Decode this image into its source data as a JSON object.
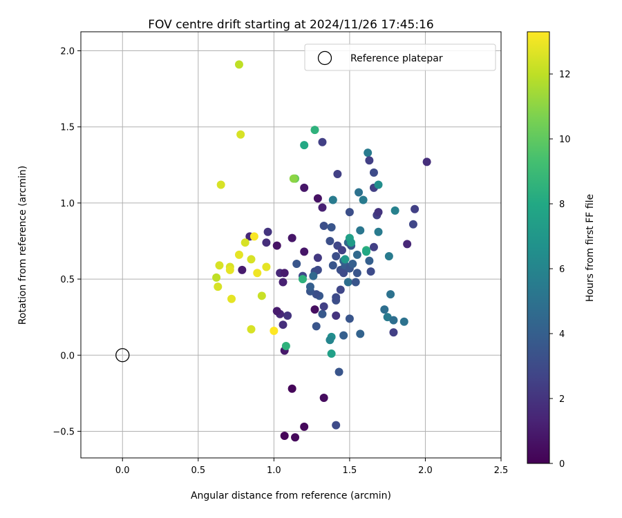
{
  "chart_data": {
    "type": "scatter",
    "title": "FOV centre drift starting at 2024/11/26 17:45:16",
    "xlabel": "Angular distance from reference (arcmin)",
    "ylabel": "Rotation from reference (arcmin)",
    "xlim": [
      -0.275,
      2.5
    ],
    "ylim": [
      -0.675,
      2.125
    ],
    "xticks": [
      0.0,
      0.5,
      1.0,
      1.5,
      2.0,
      2.5
    ],
    "xtick_labels": [
      "0.0",
      "0.5",
      "1.0",
      "1.5",
      "2.0",
      "2.5"
    ],
    "yticks": [
      -0.5,
      0.0,
      0.5,
      1.0,
      1.5,
      2.0
    ],
    "ytick_labels": [
      "−0.5",
      "0.0",
      "0.5",
      "1.0",
      "1.5",
      "2.0"
    ],
    "grid": true,
    "legend": {
      "position": "top-right",
      "entries": [
        "Reference platepar"
      ]
    },
    "reference_point": {
      "x": 0.0,
      "y": 0.0,
      "marker": "open-circle"
    },
    "colorbar": {
      "label": "Hours from first FF file",
      "colormap": "viridis",
      "range": [
        0,
        13.3
      ],
      "ticks": [
        0,
        2,
        4,
        6,
        8,
        10,
        12
      ],
      "tick_labels": [
        "0",
        "2",
        "4",
        "6",
        "8",
        "10",
        "12"
      ]
    },
    "series": [
      {
        "points": [
          {
            "x": 1.07,
            "y": -0.53,
            "c": 0.2
          },
          {
            "x": 1.14,
            "y": -0.54,
            "c": 0.3
          },
          {
            "x": 1.2,
            "y": -0.47,
            "c": 0.3
          },
          {
            "x": 1.12,
            "y": -0.22,
            "c": 0.2
          },
          {
            "x": 1.33,
            "y": -0.28,
            "c": 0.4
          },
          {
            "x": 1.07,
            "y": 0.03,
            "c": 0.9
          },
          {
            "x": 1.06,
            "y": 0.2,
            "c": 1.8
          },
          {
            "x": 1.09,
            "y": 0.26,
            "c": 2.0
          },
          {
            "x": 1.04,
            "y": 0.27,
            "c": 1.5
          },
          {
            "x": 1.02,
            "y": 0.29,
            "c": 1.0
          },
          {
            "x": 1.27,
            "y": 0.3,
            "c": 0.5
          },
          {
            "x": 1.06,
            "y": 0.48,
            "c": 1.2
          },
          {
            "x": 1.04,
            "y": 0.54,
            "c": 1.5
          },
          {
            "x": 1.07,
            "y": 0.54,
            "c": 1.0
          },
          {
            "x": 1.02,
            "y": 0.72,
            "c": 0.7
          },
          {
            "x": 1.12,
            "y": 0.77,
            "c": 0.8
          },
          {
            "x": 1.2,
            "y": 0.68,
            "c": 0.8
          },
          {
            "x": 0.84,
            "y": 0.78,
            "c": 1.5
          },
          {
            "x": 0.95,
            "y": 0.74,
            "c": 1.8
          },
          {
            "x": 0.96,
            "y": 0.81,
            "c": 2.0
          },
          {
            "x": 0.79,
            "y": 0.56,
            "c": 1.0
          },
          {
            "x": 1.2,
            "y": 1.1,
            "c": 0.8
          },
          {
            "x": 1.29,
            "y": 1.03,
            "c": 0.6
          },
          {
            "x": 1.32,
            "y": 0.97,
            "c": 1.2
          },
          {
            "x": 1.32,
            "y": 1.4,
            "c": 2.5
          },
          {
            "x": 1.42,
            "y": 1.19,
            "c": 2.5
          },
          {
            "x": 1.41,
            "y": 0.26,
            "c": 2.0
          },
          {
            "x": 1.41,
            "y": -0.46,
            "c": 3.0
          },
          {
            "x": 1.43,
            "y": -0.11,
            "c": 3.5
          },
          {
            "x": 1.28,
            "y": 0.19,
            "c": 3.5
          },
          {
            "x": 1.32,
            "y": 0.27,
            "c": 3.7
          },
          {
            "x": 1.33,
            "y": 0.32,
            "c": 2.5
          },
          {
            "x": 1.41,
            "y": 0.36,
            "c": 3.2
          },
          {
            "x": 1.41,
            "y": 0.38,
            "c": 3.0
          },
          {
            "x": 1.44,
            "y": 0.43,
            "c": 2.8
          },
          {
            "x": 1.3,
            "y": 0.39,
            "c": 3.7
          },
          {
            "x": 1.28,
            "y": 0.4,
            "c": 3.2
          },
          {
            "x": 1.24,
            "y": 0.42,
            "c": 3.5
          },
          {
            "x": 1.19,
            "y": 0.52,
            "c": 2.8
          },
          {
            "x": 1.15,
            "y": 0.6,
            "c": 3.5
          },
          {
            "x": 1.24,
            "y": 0.45,
            "c": 4.0
          },
          {
            "x": 1.27,
            "y": 0.55,
            "c": 3.2
          },
          {
            "x": 1.29,
            "y": 0.56,
            "c": 3.0
          },
          {
            "x": 1.26,
            "y": 0.52,
            "c": 4.5
          },
          {
            "x": 1.29,
            "y": 0.64,
            "c": 2.2
          },
          {
            "x": 1.33,
            "y": 0.85,
            "c": 3.2
          },
          {
            "x": 1.38,
            "y": 0.84,
            "c": 3.5
          },
          {
            "x": 1.37,
            "y": 0.75,
            "c": 3.2
          },
          {
            "x": 1.41,
            "y": 0.65,
            "c": 3.2
          },
          {
            "x": 1.42,
            "y": 0.72,
            "c": 2.8
          },
          {
            "x": 1.45,
            "y": 0.69,
            "c": 2.5
          },
          {
            "x": 1.39,
            "y": 0.59,
            "c": 3.5
          },
          {
            "x": 1.44,
            "y": 0.56,
            "c": 3.2
          },
          {
            "x": 1.46,
            "y": 0.54,
            "c": 3.0
          },
          {
            "x": 1.47,
            "y": 0.59,
            "c": 3.8
          },
          {
            "x": 1.49,
            "y": 0.48,
            "c": 4.8
          },
          {
            "x": 1.5,
            "y": 0.57,
            "c": 3.5
          },
          {
            "x": 1.52,
            "y": 0.6,
            "c": 4.0
          },
          {
            "x": 1.54,
            "y": 0.48,
            "c": 3.5
          },
          {
            "x": 1.55,
            "y": 0.54,
            "c": 3.5
          },
          {
            "x": 1.46,
            "y": 0.62,
            "c": 4.2
          },
          {
            "x": 1.49,
            "y": 0.74,
            "c": 4.5
          },
          {
            "x": 1.51,
            "y": 0.72,
            "c": 3.5
          },
          {
            "x": 1.5,
            "y": 0.94,
            "c": 3.2
          },
          {
            "x": 1.46,
            "y": 0.13,
            "c": 4.0
          },
          {
            "x": 1.57,
            "y": 0.14,
            "c": 4.2
          },
          {
            "x": 1.5,
            "y": 0.24,
            "c": 3.5
          },
          {
            "x": 1.55,
            "y": 0.66,
            "c": 4.5
          },
          {
            "x": 1.57,
            "y": 0.82,
            "c": 5.2
          },
          {
            "x": 1.56,
            "y": 1.07,
            "c": 5.0
          },
          {
            "x": 1.59,
            "y": 1.02,
            "c": 5.5
          },
          {
            "x": 1.62,
            "y": 1.33,
            "c": 5.5
          },
          {
            "x": 1.63,
            "y": 1.28,
            "c": 2.5
          },
          {
            "x": 1.66,
            "y": 1.2,
            "c": 3.0
          },
          {
            "x": 1.66,
            "y": 1.1,
            "c": 2.5
          },
          {
            "x": 1.68,
            "y": 0.92,
            "c": 2.5
          },
          {
            "x": 1.69,
            "y": 0.94,
            "c": 2.0
          },
          {
            "x": 1.66,
            "y": 0.71,
            "c": 2.5
          },
          {
            "x": 1.63,
            "y": 0.62,
            "c": 4.0
          },
          {
            "x": 1.64,
            "y": 0.55,
            "c": 3.0
          },
          {
            "x": 1.69,
            "y": 0.81,
            "c": 5.5
          },
          {
            "x": 1.69,
            "y": 1.12,
            "c": 6.5
          },
          {
            "x": 1.76,
            "y": 0.65,
            "c": 5.5
          },
          {
            "x": 1.75,
            "y": 0.25,
            "c": 5.5
          },
          {
            "x": 1.77,
            "y": 0.4,
            "c": 5.0
          },
          {
            "x": 1.73,
            "y": 0.3,
            "c": 4.8
          },
          {
            "x": 1.79,
            "y": 0.23,
            "c": 4.8
          },
          {
            "x": 1.8,
            "y": 0.95,
            "c": 5.8
          },
          {
            "x": 1.79,
            "y": 0.15,
            "c": 2.5
          },
          {
            "x": 1.86,
            "y": 0.22,
            "c": 5.0
          },
          {
            "x": 1.88,
            "y": 0.73,
            "c": 1.5
          },
          {
            "x": 1.92,
            "y": 0.86,
            "c": 2.8
          },
          {
            "x": 1.93,
            "y": 0.96,
            "c": 2.5
          },
          {
            "x": 2.01,
            "y": 1.27,
            "c": 1.8
          },
          {
            "x": 1.39,
            "y": 1.02,
            "c": 5.5
          },
          {
            "x": 1.38,
            "y": 0.12,
            "c": 6.5
          },
          {
            "x": 1.37,
            "y": 0.1,
            "c": 6.0
          },
          {
            "x": 1.38,
            "y": 0.01,
            "c": 7.5
          },
          {
            "x": 1.5,
            "y": 0.77,
            "c": 7.5
          },
          {
            "x": 1.51,
            "y": 0.74,
            "c": 7.2
          },
          {
            "x": 1.47,
            "y": 0.63,
            "c": 7.0
          },
          {
            "x": 1.61,
            "y": 0.69,
            "c": 8.5
          },
          {
            "x": 1.61,
            "y": 0.68,
            "c": 8.0
          },
          {
            "x": 1.19,
            "y": 0.5,
            "c": 8.5
          },
          {
            "x": 1.08,
            "y": 0.06,
            "c": 8.5
          },
          {
            "x": 1.2,
            "y": 1.38,
            "c": 8.0
          },
          {
            "x": 1.27,
            "y": 1.48,
            "c": 8.5
          },
          {
            "x": 1.14,
            "y": 1.16,
            "c": 10.2
          },
          {
            "x": 1.13,
            "y": 1.16,
            "c": 11.0
          },
          {
            "x": 0.77,
            "y": 1.91,
            "c": 12.0
          },
          {
            "x": 0.78,
            "y": 1.45,
            "c": 12.5
          },
          {
            "x": 0.65,
            "y": 1.12,
            "c": 12.5
          },
          {
            "x": 0.64,
            "y": 0.59,
            "c": 12.5
          },
          {
            "x": 0.62,
            "y": 0.51,
            "c": 12.0
          },
          {
            "x": 0.63,
            "y": 0.45,
            "c": 12.5
          },
          {
            "x": 0.71,
            "y": 0.58,
            "c": 12.5
          },
          {
            "x": 0.71,
            "y": 0.56,
            "c": 12.8
          },
          {
            "x": 0.72,
            "y": 0.37,
            "c": 12.8
          },
          {
            "x": 0.77,
            "y": 0.66,
            "c": 12.8
          },
          {
            "x": 0.81,
            "y": 0.74,
            "c": 12.5
          },
          {
            "x": 0.85,
            "y": 0.63,
            "c": 12.5
          },
          {
            "x": 0.87,
            "y": 0.78,
            "c": 13.2
          },
          {
            "x": 0.89,
            "y": 0.54,
            "c": 13.0
          },
          {
            "x": 0.92,
            "y": 0.39,
            "c": 12.2
          },
          {
            "x": 0.95,
            "y": 0.58,
            "c": 12.8
          },
          {
            "x": 0.85,
            "y": 0.17,
            "c": 12.5
          },
          {
            "x": 1.0,
            "y": 0.16,
            "c": 13.3
          }
        ]
      }
    ]
  }
}
